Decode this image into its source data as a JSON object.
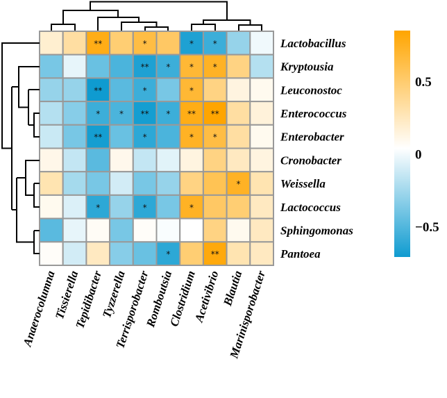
{
  "chart_data": {
    "type": "heatmap",
    "title": "",
    "rows": [
      "Lactobacillus",
      "Kryptousia",
      "Leuconostoc",
      "Enterococcus",
      "Enterobacter",
      "Cronobacter",
      "Weissella",
      "Lactococcus",
      "Sphingomonas",
      "Pantoea"
    ],
    "columns": [
      "Anaerocolumna",
      "Tissierella",
      "Tepidibacter",
      "Tyzzerella",
      "Terrisporobacter",
      "Romboutsia",
      "Clostridium",
      "Acetivibrio",
      "Blautia",
      "Marinisporobacter"
    ],
    "values": [
      [
        0.15,
        0.3,
        0.75,
        0.45,
        0.6,
        0.5,
        -0.75,
        -0.65,
        -0.35,
        -0.05
      ],
      [
        -0.45,
        -0.08,
        -0.5,
        -0.6,
        -0.75,
        -0.65,
        0.65,
        0.7,
        0.4,
        -0.25
      ],
      [
        -0.35,
        -0.35,
        -0.8,
        -0.55,
        -0.65,
        -0.45,
        0.65,
        0.4,
        0.1,
        0.05
      ],
      [
        -0.25,
        -0.4,
        -0.65,
        -0.6,
        -0.78,
        -0.65,
        0.75,
        0.82,
        0.3,
        0.12
      ],
      [
        -0.18,
        -0.45,
        -0.78,
        -0.5,
        -0.7,
        -0.6,
        0.7,
        0.6,
        0.3,
        0.05
      ],
      [
        0.07,
        -0.2,
        -0.55,
        0.06,
        -0.2,
        -0.1,
        0.1,
        0.4,
        0.2,
        0.1
      ],
      [
        0.25,
        -0.3,
        -0.45,
        -0.15,
        -0.45,
        -0.35,
        0.4,
        0.55,
        0.7,
        0.25
      ],
      [
        0.05,
        -0.12,
        -0.7,
        -0.35,
        -0.7,
        -0.45,
        0.7,
        0.5,
        0.45,
        0.2
      ],
      [
        -0.55,
        -0.08,
        0.03,
        -0.45,
        0.02,
        -0.02,
        0.0,
        0.4,
        0.05,
        0.2
      ],
      [
        0.02,
        -0.15,
        0.2,
        -0.4,
        -0.5,
        -0.7,
        0.45,
        0.78,
        0.25,
        0.2
      ]
    ],
    "significance": [
      [
        "",
        "",
        "**",
        "",
        "*",
        "",
        "*",
        "*",
        "",
        ""
      ],
      [
        "",
        "",
        "",
        "",
        "**",
        "*",
        "*",
        "*",
        "",
        ""
      ],
      [
        "",
        "",
        "**",
        "",
        "*",
        "",
        "*",
        "",
        "",
        ""
      ],
      [
        "",
        "",
        "*",
        "*",
        "**",
        "*",
        "**",
        "**",
        "",
        ""
      ],
      [
        "",
        "",
        "**",
        "",
        "*",
        "",
        "*",
        "*",
        "",
        ""
      ],
      [
        "",
        "",
        "",
        "",
        "",
        "",
        "",
        "",
        "",
        ""
      ],
      [
        "",
        "",
        "",
        "",
        "",
        "",
        "",
        "",
        "*",
        ""
      ],
      [
        "",
        "",
        "*",
        "",
        "*",
        "",
        "*",
        "",
        "",
        ""
      ],
      [
        "",
        "",
        "",
        "",
        "",
        "",
        "",
        "",
        "",
        ""
      ],
      [
        "",
        "",
        "",
        "",
        "",
        "*",
        "",
        "**",
        "",
        ""
      ]
    ],
    "color_scale": {
      "low": "#0f9bd0",
      "mid": "#ffffff",
      "high": "#ffa500",
      "range": [
        -0.71,
        0.85
      ]
    },
    "colorbar_ticks": [
      {
        "value": 0.5,
        "label": "0.5"
      },
      {
        "value": 0,
        "label": "0"
      },
      {
        "value": -0.5,
        "label": "−0.5"
      }
    ],
    "grid_color": "#999999",
    "row_dendrogram": true,
    "column_dendrogram": true
  }
}
